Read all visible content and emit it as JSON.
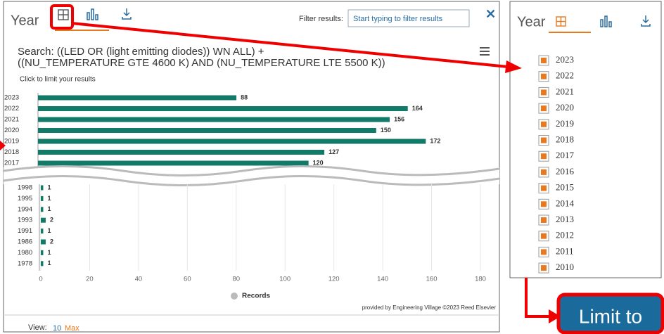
{
  "left_panel": {
    "heading": "Year",
    "filter_label": "Filter results:",
    "filter_placeholder": "Start typing to filter results",
    "close": "✕",
    "search_line1": "Search: ((LED OR (light emitting diodes)) WN ALL) +",
    "search_line2": "((NU_TEMPERATURE GTE 4600 K) AND (NU_TEMPERATURE LTE 5500 K))",
    "hint": "Click to limit your results",
    "credit": "provided by Engineering Village ©2023 Reed Elsevier",
    "view_label": "View:",
    "view_options": [
      "10",
      "Max"
    ]
  },
  "chart_data": [
    {
      "type": "bar",
      "orientation": "horizontal",
      "categories": [
        "2023",
        "2022",
        "2021",
        "2020",
        "2019",
        "2018",
        "2017"
      ],
      "values": [
        88,
        164,
        156,
        150,
        172,
        127,
        120
      ],
      "color": "#127a68"
    },
    {
      "type": "bar",
      "orientation": "horizontal",
      "categories": [
        "1998",
        "1995",
        "1994",
        "1993",
        "1991",
        "1986",
        "1980",
        "1978"
      ],
      "series": [
        {
          "name": "Records",
          "color": "#127a68",
          "values": [
            1,
            1,
            1,
            2,
            1,
            2,
            1,
            1
          ]
        }
      ],
      "xlim": [
        0,
        180
      ],
      "xticks": [
        0,
        20,
        40,
        60,
        80,
        100,
        120,
        140,
        160,
        180
      ],
      "grid": true,
      "legend": "bottom"
    }
  ],
  "right_panel": {
    "heading": "Year",
    "items": [
      "2023",
      "2022",
      "2021",
      "2020",
      "2019",
      "2018",
      "2017",
      "2016",
      "2015",
      "2014",
      "2013",
      "2012",
      "2011",
      "2010"
    ]
  },
  "button": {
    "label": "Limit to"
  }
}
